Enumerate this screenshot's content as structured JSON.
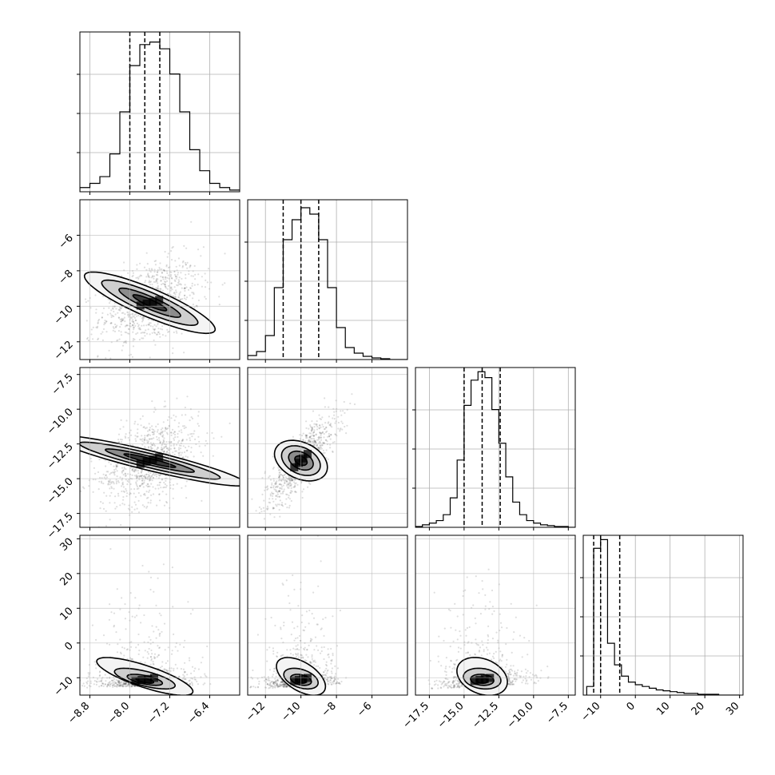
{
  "chart_data": {
    "type": "scatter",
    "kind": "corner-plot",
    "title": "",
    "grid": true,
    "parameters": [
      {
        "ticks": [
          -8.8,
          -8.0,
          -7.2,
          -6.4
        ],
        "tick_labels": [
          "−8.8",
          "−8.0",
          "−7.2",
          "−6.4"
        ],
        "range": [
          -9.0,
          -5.8
        ],
        "quantiles": [
          -8.0,
          -7.7,
          -7.4
        ],
        "hist_edges": [
          -9.0,
          -8.8,
          -8.6,
          -8.4,
          -8.2,
          -8.0,
          -7.8,
          -7.6,
          -7.4,
          -7.2,
          -7.0,
          -6.8,
          -6.6,
          -6.4,
          -6.2,
          -6.0,
          -5.8
        ],
        "hist_counts": [
          5,
          10,
          18,
          45,
          95,
          150,
          175,
          178,
          170,
          140,
          95,
          50,
          25,
          10,
          5,
          2
        ],
        "hist_ymax": 190
      },
      {
        "ticks": [
          -12,
          -10,
          -8,
          -6
        ],
        "tick_labels": [
          "−12",
          "−10",
          "−8",
          "−6"
        ],
        "range": [
          -13.0,
          -4.0
        ],
        "quantiles": [
          -11.0,
          -10.0,
          -9.0
        ],
        "hist_edges": [
          -13.0,
          -12.5,
          -12.0,
          -11.5,
          -11.0,
          -10.5,
          -10.0,
          -9.5,
          -9.0,
          -8.5,
          -8.0,
          -7.5,
          -7.0,
          -6.5,
          -6.0,
          -5.5,
          -5.0,
          -4.5,
          -4.0
        ],
        "hist_counts": [
          5,
          10,
          30,
          90,
          150,
          175,
          190,
          182,
          150,
          90,
          40,
          15,
          8,
          4,
          2,
          1,
          0,
          0
        ],
        "hist_ymax": 200
      },
      {
        "ticks": [
          -17.5,
          -15.0,
          -12.5,
          -10.0,
          -7.5
        ],
        "tick_labels": [
          "−17.5",
          "−15.0",
          "−12.5",
          "−10.0",
          "−7.5"
        ],
        "range": [
          -18.5,
          -7.0
        ],
        "quantiles": [
          -15.0,
          -13.7,
          -12.4
        ],
        "hist_edges": [
          -18.5,
          -18.0,
          -17.5,
          -17.0,
          -16.5,
          -16.0,
          -15.5,
          -15.0,
          -14.5,
          -14.0,
          -13.5,
          -13.0,
          -12.5,
          -12.0,
          -11.5,
          -11.0,
          -10.5,
          -10.0,
          -9.5,
          -9.0,
          -8.5,
          -8.0,
          -7.5,
          -7.0
        ],
        "hist_counts": [
          1,
          3,
          5,
          8,
          15,
          35,
          80,
          145,
          175,
          185,
          178,
          140,
          100,
          60,
          30,
          15,
          8,
          5,
          3,
          2,
          1,
          1,
          0
        ],
        "hist_ymax": 190
      },
      {
        "ticks": [
          -10,
          0,
          10,
          20,
          30
        ],
        "tick_labels": [
          "−10",
          "0",
          "10",
          "20",
          "30"
        ],
        "range": [
          -15.0,
          31.0
        ],
        "quantiles": [
          -12.0,
          -10.0,
          -4.5
        ],
        "hist_edges": [
          -14,
          -12,
          -10,
          -8,
          -6,
          -4,
          -2,
          0,
          2,
          4,
          6,
          8,
          10,
          12,
          14,
          16,
          18,
          20,
          22,
          24,
          26,
          28,
          30
        ],
        "hist_counts": [
          10,
          170,
          180,
          60,
          35,
          22,
          15,
          12,
          10,
          8,
          6,
          5,
          4,
          3,
          2,
          2,
          1,
          1,
          1,
          0,
          0,
          0
        ],
        "hist_ymax": 185
      }
    ],
    "pairs": [
      {
        "row": 1,
        "col": 0,
        "center": [
          -7.6,
          -9.8
        ],
        "spread": [
          0.5,
          1.2
        ],
        "rho": 0.35,
        "levels": [
          [
            0.22,
            0.55
          ],
          [
            0.42,
            1.0
          ],
          [
            0.7,
            1.55
          ],
          [
            0.98,
            2.1
          ]
        ]
      },
      {
        "row": 2,
        "col": 0,
        "center": [
          -7.6,
          -13.7
        ],
        "spread": [
          0.5,
          1.6
        ],
        "rho": 0.4,
        "levels": [
          [
            0.22,
            0.7
          ],
          [
            0.42,
            1.2
          ],
          [
            0.7,
            1.9
          ],
          [
            0.98,
            2.6
          ]
        ]
      },
      {
        "row": 2,
        "col": 1,
        "center": [
          -10.0,
          -13.7
        ],
        "spread": [
          1.0,
          1.6
        ],
        "rho": 0.8,
        "levels": [
          [
            0.25,
            0.4
          ],
          [
            0.5,
            0.8
          ],
          [
            0.8,
            1.25
          ],
          [
            1.1,
            1.7
          ]
        ]
      },
      {
        "row": 3,
        "col": 0,
        "center": [
          -7.7,
          -10.5
        ],
        "spread": [
          0.5,
          5.0
        ],
        "rho": 0.1,
        "levels": [
          [
            0.25,
            0.8
          ],
          [
            0.5,
            1.6
          ],
          [
            0.8,
            3.0
          ],
          [
            1.05,
            5.5
          ]
        ]
      },
      {
        "row": 3,
        "col": 1,
        "center": [
          -10.0,
          -10.5
        ],
        "spread": [
          1.0,
          5.0
        ],
        "rho": 0.2,
        "levels": [
          [
            0.25,
            0.8
          ],
          [
            0.5,
            1.6
          ],
          [
            0.8,
            3.0
          ],
          [
            1.05,
            5.5
          ]
        ]
      },
      {
        "row": 3,
        "col": 2,
        "center": [
          -13.7,
          -10.5
        ],
        "spread": [
          1.5,
          5.0
        ],
        "rho": 0.2,
        "levels": [
          [
            0.25,
            0.8
          ],
          [
            0.5,
            1.6
          ],
          [
            0.8,
            3.0
          ],
          [
            1.05,
            5.5
          ]
        ]
      }
    ]
  }
}
